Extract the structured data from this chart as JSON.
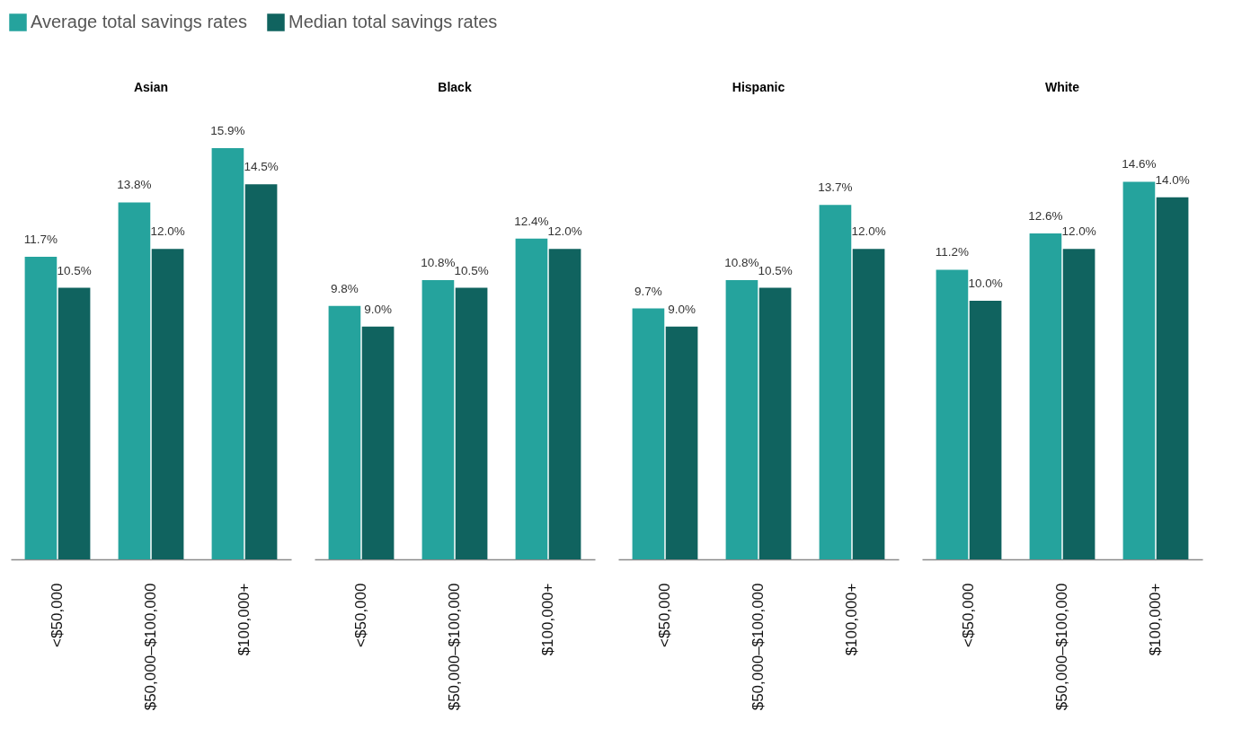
{
  "chart_data": [
    {
      "type": "bar",
      "title": "Asian",
      "categories": [
        "<$50,000",
        "$50,000–$100,000",
        "$100,000+"
      ],
      "tick_labels": "x",
      "legend": "top",
      "series": [
        {
          "name": "Average total savings rates",
          "color": "#25a39d",
          "values": [
            11.7,
            13.8,
            15.9
          ],
          "value_labels": [
            "11.7%",
            "13.8%",
            "15.9%"
          ]
        },
        {
          "name": "Median total savings rates",
          "color": "#10635f",
          "values": [
            10.5,
            12.0,
            14.5
          ],
          "value_labels": [
            "10.5%",
            "12.0%",
            "14.5%"
          ]
        }
      ]
    },
    {
      "type": "bar",
      "title": "Black",
      "categories": [
        "<$50,000",
        "$50,000–$100,000",
        "$100,000+"
      ],
      "tick_labels": "x",
      "series": [
        {
          "color": "#25a39d",
          "values": [
            9.8,
            10.8,
            12.4
          ],
          "value_labels": [
            "9.8%",
            "10.8%",
            "12.4%"
          ]
        },
        {
          "color": "#10635f",
          "values": [
            9.0,
            10.5,
            12.0
          ],
          "value_labels": [
            "9.0%",
            "10.5%",
            "12.0%"
          ]
        }
      ]
    },
    {
      "type": "bar",
      "title": "Hispanic",
      "categories": [
        "<$50,000",
        "$50,000–$100,000",
        "$100,000+"
      ],
      "tick_labels": "x",
      "series": [
        {
          "color": "#25a39d",
          "values": [
            9.7,
            10.8,
            13.7
          ],
          "value_labels": [
            "9.7%",
            "10.8%",
            "13.7%"
          ]
        },
        {
          "color": "#10635f",
          "values": [
            9.0,
            10.5,
            12.0
          ],
          "value_labels": [
            "9.0%",
            "10.5%",
            "12.0%"
          ]
        }
      ]
    },
    {
      "type": "bar",
      "title": "White",
      "categories": [
        "<$50,000",
        "$50,000–$100,000",
        "$100,000+"
      ],
      "tick_labels": "x",
      "series": [
        {
          "color": "#25a39d",
          "values": [
            11.2,
            12.6,
            14.6
          ],
          "value_labels": [
            "11.2%",
            "12.6%",
            "14.6%"
          ]
        },
        {
          "color": "#10635f",
          "values": [
            10.0,
            12.0,
            14.0
          ],
          "value_labels": [
            "10.0%",
            "12.0%",
            "14.0%"
          ]
        }
      ]
    }
  ]
}
